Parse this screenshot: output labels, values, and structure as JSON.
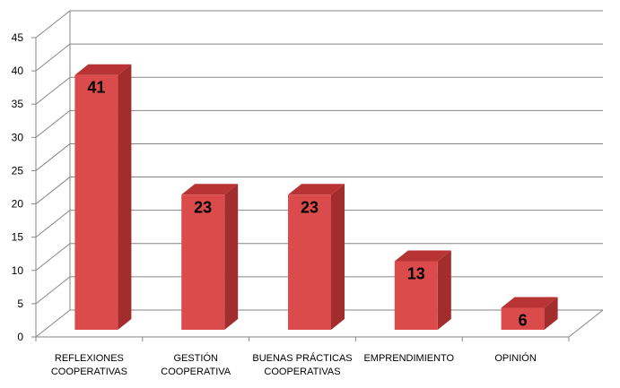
{
  "chart_data": {
    "type": "bar",
    "categories": [
      [
        "REFLEXIONES",
        "COOPERATIVAS"
      ],
      [
        "GESTIÓN",
        "COOPERATIVA"
      ],
      [
        "BUENAS PRÁCTICAS",
        "COOPERATIVAS"
      ],
      [
        "EMPRENDIMIENTO"
      ],
      [
        "OPINIÓN"
      ]
    ],
    "values": [
      41,
      23,
      23,
      13,
      6
    ],
    "data_labels": [
      "41",
      "23",
      "23",
      "13",
      "6"
    ],
    "ylim": [
      0,
      45
    ],
    "yticks": [
      "0",
      "5",
      "10",
      "15",
      "20",
      "25",
      "30",
      "35",
      "40",
      "45"
    ],
    "title": "",
    "xlabel": "",
    "ylabel": "",
    "grid": true,
    "style": "3d-column",
    "colors": {
      "bar_front": "#DC4B4B",
      "bar_side": "#A32C2C",
      "bar_top": "#B83434",
      "grid": "#868686"
    }
  }
}
